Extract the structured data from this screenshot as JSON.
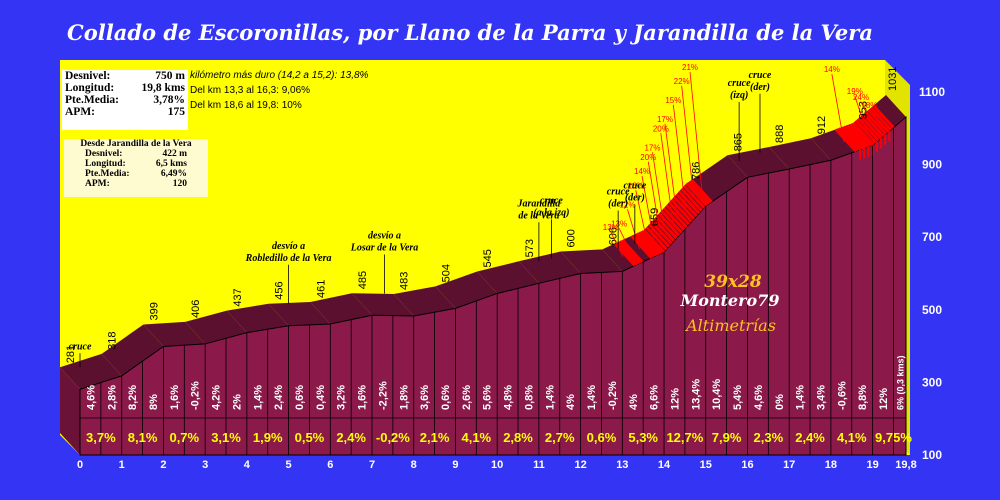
{
  "chart_data": {
    "type": "area",
    "title": "Collado de Escoronillas, por Llano de la Parra y Jarandilla de la Vera",
    "xlim": [
      0,
      19.8
    ],
    "ylim": [
      100,
      1100
    ],
    "x_ticks": [
      "0",
      "1",
      "2",
      "3",
      "4",
      "5",
      "6",
      "7",
      "8",
      "9",
      "10",
      "11",
      "12",
      "13",
      "14",
      "15",
      "16",
      "17",
      "18",
      "19",
      "19,8"
    ],
    "y_ticks": [
      "100",
      "300",
      "500",
      "700",
      "900",
      "1100"
    ],
    "profile": [
      {
        "x": 0,
        "y": 281
      },
      {
        "x": 1,
        "y": 318
      },
      {
        "x": 2,
        "y": 399
      },
      {
        "x": 3,
        "y": 406
      },
      {
        "x": 4,
        "y": 437
      },
      {
        "x": 5,
        "y": 456
      },
      {
        "x": 6,
        "y": 461
      },
      {
        "x": 7,
        "y": 485
      },
      {
        "x": 8,
        "y": 483
      },
      {
        "x": 9,
        "y": 504
      },
      {
        "x": 10,
        "y": 545
      },
      {
        "x": 11,
        "y": 573
      },
      {
        "x": 12,
        "y": 600
      },
      {
        "x": 13,
        "y": 606
      },
      {
        "x": 14,
        "y": 659
      },
      {
        "x": 15,
        "y": 786
      },
      {
        "x": 16,
        "y": 865
      },
      {
        "x": 17,
        "y": 888
      },
      {
        "x": 18,
        "y": 912
      },
      {
        "x": 19,
        "y": 953
      },
      {
        "x": 19.8,
        "y": 1031
      }
    ],
    "altitude_labels": [
      "281",
      "318",
      "399",
      "406",
      "437",
      "456",
      "461",
      "485",
      "483",
      "504",
      "545",
      "573",
      "600",
      "606",
      "659",
      "786",
      "865",
      "888",
      "912",
      "953",
      "1031"
    ],
    "km_averages": [
      "3,7%",
      "8,1%",
      "0,7%",
      "3,1%",
      "1,9%",
      "0,5%",
      "2,4%",
      "-0,2%",
      "2,1%",
      "4,1%",
      "2,8%",
      "2,7%",
      "0,6%",
      "5,3%",
      "12,7%",
      "7,9%",
      "2,3%",
      "2,4%",
      "4,1%",
      "9,75%"
    ],
    "half_km_gradients": [
      "4,6%",
      "2,8%",
      "8,2%",
      "8%",
      "1,6%",
      "-0,2%",
      "4,2%",
      "2%",
      "1,4%",
      "2,4%",
      "0,6%",
      "0,4%",
      "3,2%",
      "1,6%",
      "-2,2%",
      "1,8%",
      "3,6%",
      "0,6%",
      "2,6%",
      "5,6%",
      "4,8%",
      "0,8%",
      "1,4%",
      "4%",
      "1,4%",
      "-0,2%",
      "4%",
      "6,6%",
      "12%",
      "13,4%",
      "10,4%",
      "5,4%",
      "4,6%",
      "0%",
      "1,4%",
      "3,4%",
      "-0,6%",
      "8,8%",
      "12%",
      "6% (0,3 kms)"
    ],
    "steep_percent_labels": [
      {
        "x": 13.25,
        "text": "13%"
      },
      {
        "x": 13.45,
        "text": "13%"
      },
      {
        "x": 13.65,
        "text": "12%"
      },
      {
        "x": 13.85,
        "text": "16%"
      },
      {
        "x": 14.0,
        "text": "14%"
      },
      {
        "x": 14.15,
        "text": "20%"
      },
      {
        "x": 14.25,
        "text": "17%"
      },
      {
        "x": 14.45,
        "text": "20%"
      },
      {
        "x": 14.55,
        "text": "17%"
      },
      {
        "x": 14.75,
        "text": "15%"
      },
      {
        "x": 14.95,
        "text": "22%"
      },
      {
        "x": 15.15,
        "text": "21%"
      },
      {
        "x": 18.55,
        "text": "14%"
      },
      {
        "x": 19.1,
        "text": "19%"
      },
      {
        "x": 19.25,
        "text": "24%"
      },
      {
        "x": 19.45,
        "text": "18%"
      }
    ],
    "annotations": [
      {
        "x": 0,
        "lines": [
          "cruce"
        ]
      },
      {
        "x": 5,
        "lines": [
          "desvío a",
          "Robledillo de la Vera"
        ]
      },
      {
        "x": 7.3,
        "lines": [
          "desvío a",
          "Losar de la Vera"
        ]
      },
      {
        "x": 11.0,
        "lines": [
          "Jarandilla",
          "de la Vera"
        ]
      },
      {
        "x": 11.3,
        "lines": [
          "cruce",
          "(a la izq)"
        ]
      },
      {
        "x": 12.9,
        "lines": [
          "cruce",
          "(der)"
        ]
      },
      {
        "x": 13.3,
        "lines": [
          "cruce",
          "(der)"
        ]
      },
      {
        "x": 15.8,
        "lines": [
          "cruce",
          "(izq)"
        ]
      },
      {
        "x": 16.3,
        "lines": [
          "cruce",
          "(der)"
        ]
      }
    ]
  },
  "stats": {
    "desnivel_label": "Desnivel:",
    "desnivel": "750 m",
    "longitud_label": "Longitud:",
    "longitud": "19,8 kms",
    "pte_label": "Pte.Media:",
    "pte": "3,78%",
    "apm_label": "APM:",
    "apm": "175"
  },
  "stats_jarandilla": {
    "heading": "Desde Jarandilla de la Vera",
    "desnivel_label": "Desnivel:",
    "desnivel": "422 m",
    "longitud_label": "Longitud:",
    "longitud": "6,5 kms",
    "pte_label": "Pte.Media:",
    "pte": "6,49%",
    "apm_label": "APM:",
    "apm": "120"
  },
  "notes": {
    "line1": "kilómetro más duro (14,2 a 15,2):  13,8%",
    "line2": "Del km 13,3 al  16,3:  9,06%",
    "line3": "Del km  18,6 al 19,8:    10%"
  },
  "watermark": {
    "line1": "39x28",
    "line2": "Montero79",
    "line3": "Altimetrías"
  },
  "colors": {
    "background": "#3434f5",
    "plot": "#ffff00",
    "profile": "#8b1a4a",
    "profile_dark": "#5c1030",
    "steep": "#ff0000",
    "axis_text": "#ffffff",
    "watermark_gold": "#ffc020"
  }
}
